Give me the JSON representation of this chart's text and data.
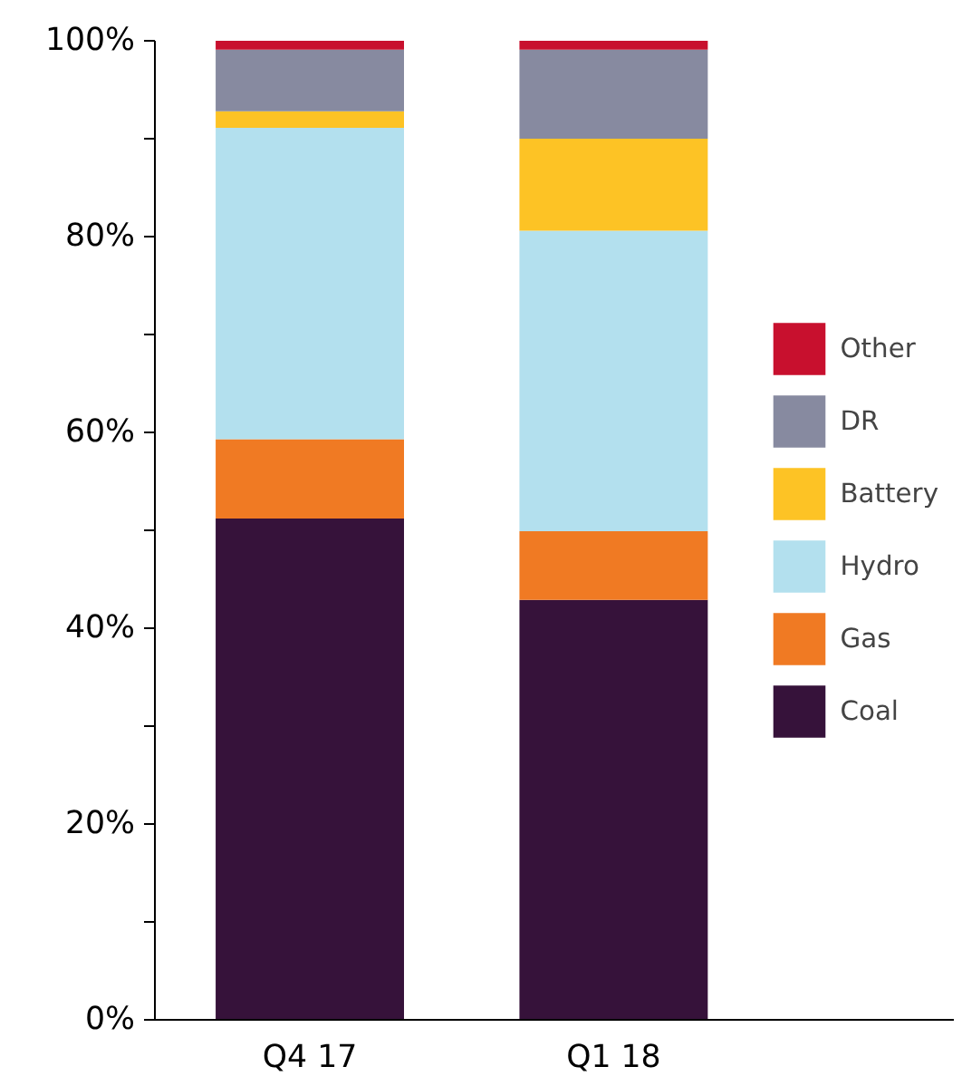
{
  "chart_data": {
    "type": "bar",
    "stacked": true,
    "categories": [
      "Q4 17",
      "Q1 18"
    ],
    "series": [
      {
        "name": "Coal",
        "color": "#36123a",
        "values": [
          51.2,
          42.9
        ]
      },
      {
        "name": "Gas",
        "color": "#f07a23",
        "values": [
          8.1,
          7.0
        ]
      },
      {
        "name": "Hydro",
        "color": "#b3e0ee",
        "values": [
          31.8,
          30.7
        ]
      },
      {
        "name": "Battery",
        "color": "#fdc325",
        "values": [
          1.7,
          9.4
        ]
      },
      {
        "name": "DR",
        "color": "#878aa0",
        "values": [
          6.3,
          9.1
        ]
      },
      {
        "name": "Other",
        "color": "#c8102e",
        "values": [
          0.9,
          0.9
        ]
      }
    ],
    "ylim": [
      0,
      100
    ],
    "yticks": [
      {
        "value": 0,
        "label": "0%"
      },
      {
        "value": 10,
        "label": null
      },
      {
        "value": 20,
        "label": "20%"
      },
      {
        "value": 30,
        "label": null
      },
      {
        "value": 40,
        "label": "40%"
      },
      {
        "value": 50,
        "label": null
      },
      {
        "value": 60,
        "label": "60%"
      },
      {
        "value": 70,
        "label": null
      },
      {
        "value": 80,
        "label": "80%"
      },
      {
        "value": 90,
        "label": null
      },
      {
        "value": 100,
        "label": "100%"
      }
    ],
    "grid": false,
    "legend": "right"
  }
}
